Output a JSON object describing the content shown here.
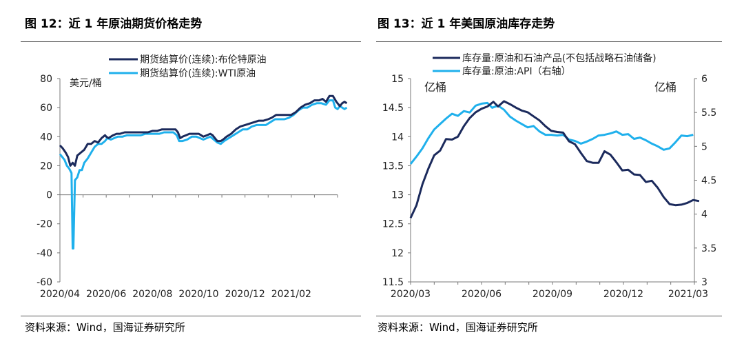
{
  "charts": [
    {
      "fig_title": "图 12：近 1 年原油期货价格走势",
      "source": "资料来源：Wind，国海证券研究所",
      "unit_label": "美元/桶",
      "colors": {
        "series1": "#1b2a5c",
        "series2": "#1fb0ec"
      }
    },
    {
      "fig_title": "图 13：近 1 年美国原油库存走势",
      "source": "资料来源：Wind，国海证券研究所",
      "unit_left": "亿桶",
      "unit_right": "亿桶",
      "colors": {
        "series1": "#1b2a5c",
        "series2": "#1fb0ec"
      }
    }
  ],
  "chart_data": [
    {
      "type": "line",
      "title": "近 1 年原油期货价格走势",
      "ylabel": "美元/桶",
      "ylim": [
        -60,
        80
      ],
      "yticks": [
        80,
        60,
        40,
        20,
        0,
        -20,
        -40,
        -60
      ],
      "x_ticks": [
        {
          "label": "2020/04",
          "x": 0
        },
        {
          "label": "2020/06",
          "x": 2
        },
        {
          "label": "2020/08",
          "x": 4
        },
        {
          "label": "2020/10",
          "x": 6
        },
        {
          "label": "2020/12",
          "x": 8
        },
        {
          "label": "2021/02",
          "x": 10
        }
      ],
      "xlim": [
        0,
        12
      ],
      "series": [
        {
          "name": "期货结算价(连续):布伦特原油",
          "points": [
            [
              0,
              34
            ],
            [
              0.12,
              32
            ],
            [
              0.25,
              29
            ],
            [
              0.35,
              26
            ],
            [
              0.45,
              20
            ],
            [
              0.55,
              22
            ],
            [
              0.65,
              20
            ],
            [
              0.75,
              27
            ],
            [
              0.9,
              29
            ],
            [
              1.05,
              31
            ],
            [
              1.2,
              35
            ],
            [
              1.35,
              35
            ],
            [
              1.5,
              37
            ],
            [
              1.65,
              36
            ],
            [
              1.8,
              39
            ],
            [
              1.95,
              41
            ],
            [
              2.0,
              40
            ],
            [
              2.1,
              39
            ],
            [
              2.3,
              41
            ],
            [
              2.45,
              42
            ],
            [
              2.6,
              42
            ],
            [
              2.8,
              43
            ],
            [
              3.0,
              43
            ],
            [
              3.2,
              43
            ],
            [
              3.4,
              43
            ],
            [
              3.6,
              43
            ],
            [
              3.8,
              43
            ],
            [
              4.0,
              44
            ],
            [
              4.2,
              44
            ],
            [
              4.4,
              45
            ],
            [
              4.6,
              45
            ],
            [
              4.8,
              45
            ],
            [
              5.0,
              45
            ],
            [
              5.1,
              43
            ],
            [
              5.2,
              39
            ],
            [
              5.3,
              40
            ],
            [
              5.45,
              41
            ],
            [
              5.6,
              42
            ],
            [
              5.8,
              42
            ],
            [
              6.0,
              42
            ],
            [
              6.1,
              41
            ],
            [
              6.2,
              40
            ],
            [
              6.35,
              41
            ],
            [
              6.5,
              42
            ],
            [
              6.6,
              41
            ],
            [
              6.7,
              39
            ],
            [
              6.8,
              37
            ],
            [
              6.95,
              37
            ],
            [
              7.05,
              38
            ],
            [
              7.2,
              40
            ],
            [
              7.4,
              42
            ],
            [
              7.6,
              45
            ],
            [
              7.8,
              47
            ],
            [
              8.0,
              48
            ],
            [
              8.2,
              49
            ],
            [
              8.4,
              50
            ],
            [
              8.6,
              51
            ],
            [
              8.8,
              51
            ],
            [
              9.0,
              52
            ],
            [
              9.15,
              53
            ],
            [
              9.35,
              55
            ],
            [
              9.6,
              55
            ],
            [
              9.8,
              55
            ],
            [
              10.0,
              55
            ],
            [
              10.2,
              57
            ],
            [
              10.4,
              60
            ],
            [
              10.6,
              62
            ],
            [
              10.8,
              63
            ],
            [
              11.0,
              65
            ],
            [
              11.2,
              65
            ],
            [
              11.35,
              66
            ],
            [
              11.5,
              64
            ],
            [
              11.65,
              68
            ],
            [
              11.8,
              68
            ],
            [
              11.95,
              64
            ],
            [
              12.0,
              63
            ],
            [
              12.1,
              61
            ],
            [
              12.2,
              63
            ],
            [
              12.3,
              64
            ],
            [
              12.4,
              63
            ]
          ]
        },
        {
          "name": "期货结算价(连续):WTI原油",
          "points": [
            [
              0,
              28
            ],
            [
              0.1,
              26
            ],
            [
              0.2,
              24
            ],
            [
              0.3,
              20
            ],
            [
              0.4,
              18
            ],
            [
              0.5,
              15
            ],
            [
              0.55,
              -37
            ],
            [
              0.58,
              -37
            ],
            [
              0.65,
              10
            ],
            [
              0.75,
              12
            ],
            [
              0.85,
              17
            ],
            [
              0.95,
              17
            ],
            [
              1.05,
              22
            ],
            [
              1.2,
              25
            ],
            [
              1.35,
              29
            ],
            [
              1.5,
              33
            ],
            [
              1.65,
              35
            ],
            [
              1.8,
              35
            ],
            [
              1.95,
              37
            ],
            [
              2.05,
              39
            ],
            [
              2.2,
              38
            ],
            [
              2.35,
              39
            ],
            [
              2.5,
              40
            ],
            [
              2.7,
              40
            ],
            [
              2.9,
              41
            ],
            [
              3.1,
              41
            ],
            [
              3.3,
              41
            ],
            [
              3.5,
              41
            ],
            [
              3.7,
              42
            ],
            [
              3.9,
              42
            ],
            [
              4.1,
              42
            ],
            [
              4.3,
              42
            ],
            [
              4.5,
              43
            ],
            [
              4.7,
              43
            ],
            [
              4.9,
              43
            ],
            [
              5.05,
              41
            ],
            [
              5.15,
              37
            ],
            [
              5.3,
              37
            ],
            [
              5.5,
              38
            ],
            [
              5.7,
              40
            ],
            [
              5.9,
              40
            ],
            [
              6.05,
              39
            ],
            [
              6.2,
              38
            ],
            [
              6.35,
              39
            ],
            [
              6.5,
              40
            ],
            [
              6.65,
              38
            ],
            [
              6.8,
              36
            ],
            [
              6.95,
              35
            ],
            [
              7.1,
              37
            ],
            [
              7.3,
              39
            ],
            [
              7.5,
              41
            ],
            [
              7.7,
              43
            ],
            [
              7.9,
              45
            ],
            [
              8.1,
              45
            ],
            [
              8.3,
              47
            ],
            [
              8.5,
              48
            ],
            [
              8.7,
              48
            ],
            [
              8.9,
              48
            ],
            [
              9.1,
              50
            ],
            [
              9.3,
              52
            ],
            [
              9.5,
              52
            ],
            [
              9.7,
              52
            ],
            [
              9.9,
              53
            ],
            [
              10.1,
              55
            ],
            [
              10.3,
              58
            ],
            [
              10.5,
              60
            ],
            [
              10.7,
              60
            ],
            [
              10.9,
              62
            ],
            [
              11.1,
              63
            ],
            [
              11.3,
              63
            ],
            [
              11.5,
              62
            ],
            [
              11.65,
              65
            ],
            [
              11.8,
              65
            ],
            [
              11.9,
              60
            ],
            [
              12.0,
              59
            ],
            [
              12.1,
              61
            ],
            [
              12.2,
              60
            ],
            [
              12.3,
              59
            ],
            [
              12.4,
              60
            ]
          ]
        }
      ]
    },
    {
      "type": "line",
      "title": "近 1 年美国原油库存走势",
      "ylabel_left": "亿桶",
      "ylabel_right": "亿桶",
      "ylim_left": [
        11.5,
        15
      ],
      "ylim_right": [
        3,
        6
      ],
      "yticks_left": [
        15,
        14.5,
        14,
        13.5,
        13,
        12.5,
        12,
        11.5
      ],
      "yticks_right": [
        6,
        5.5,
        5,
        4.5,
        4,
        3.5,
        3
      ],
      "x_ticks": [
        {
          "label": "2020/03",
          "x": 0
        },
        {
          "label": "2020/06",
          "x": 3
        },
        {
          "label": "2020/09",
          "x": 6
        },
        {
          "label": "2020/12",
          "x": 9
        },
        {
          "label": "2021/03",
          "x": 12
        }
      ],
      "xlim": [
        0,
        12
      ],
      "series": [
        {
          "name": "库存量:原油和石油产品(不包括战略石油储备)",
          "axis": "left",
          "points": [
            [
              0,
              12.6
            ],
            [
              0.25,
              12.82
            ],
            [
              0.5,
              13.18
            ],
            [
              0.75,
              13.45
            ],
            [
              1.0,
              13.68
            ],
            [
              1.25,
              13.76
            ],
            [
              1.5,
              13.96
            ],
            [
              1.75,
              13.95
            ],
            [
              2.0,
              14.0
            ],
            [
              2.25,
              14.18
            ],
            [
              2.5,
              14.32
            ],
            [
              2.75,
              14.42
            ],
            [
              3.0,
              14.48
            ],
            [
              3.25,
              14.52
            ],
            [
              3.5,
              14.6
            ],
            [
              3.7,
              14.52
            ],
            [
              3.95,
              14.61
            ],
            [
              4.2,
              14.56
            ],
            [
              4.45,
              14.5
            ],
            [
              4.7,
              14.45
            ],
            [
              4.95,
              14.42
            ],
            [
              5.2,
              14.35
            ],
            [
              5.45,
              14.28
            ],
            [
              5.7,
              14.18
            ],
            [
              5.95,
              14.1
            ],
            [
              6.2,
              14.08
            ],
            [
              6.45,
              14.07
            ],
            [
              6.7,
              13.92
            ],
            [
              6.95,
              13.87
            ],
            [
              7.2,
              13.72
            ],
            [
              7.45,
              13.58
            ],
            [
              7.7,
              13.55
            ],
            [
              7.95,
              13.55
            ],
            [
              8.2,
              13.75
            ],
            [
              8.45,
              13.69
            ],
            [
              8.7,
              13.56
            ],
            [
              8.95,
              13.42
            ],
            [
              9.2,
              13.43
            ],
            [
              9.45,
              13.35
            ],
            [
              9.7,
              13.34
            ],
            [
              9.95,
              13.22
            ],
            [
              10.2,
              13.24
            ],
            [
              10.45,
              13.12
            ],
            [
              10.7,
              12.96
            ],
            [
              10.95,
              12.84
            ],
            [
              11.2,
              12.82
            ],
            [
              11.45,
              12.83
            ],
            [
              11.7,
              12.86
            ],
            [
              11.95,
              12.91
            ],
            [
              12.2,
              12.89
            ]
          ]
        },
        {
          "name": "库存量:原油:API（右轴）",
          "axis": "right",
          "points": [
            [
              0,
              4.74
            ],
            [
              0.25,
              4.85
            ],
            [
              0.5,
              4.97
            ],
            [
              0.75,
              5.12
            ],
            [
              1.0,
              5.25
            ],
            [
              1.25,
              5.33
            ],
            [
              1.5,
              5.41
            ],
            [
              1.75,
              5.48
            ],
            [
              2.0,
              5.45
            ],
            [
              2.25,
              5.52
            ],
            [
              2.5,
              5.5
            ],
            [
              2.75,
              5.6
            ],
            [
              3.0,
              5.63
            ],
            [
              3.25,
              5.64
            ],
            [
              3.45,
              5.57
            ],
            [
              3.7,
              5.6
            ],
            [
              3.95,
              5.54
            ],
            [
              4.2,
              5.44
            ],
            [
              4.45,
              5.38
            ],
            [
              4.7,
              5.33
            ],
            [
              4.95,
              5.28
            ],
            [
              5.2,
              5.3
            ],
            [
              5.45,
              5.22
            ],
            [
              5.7,
              5.17
            ],
            [
              5.95,
              5.17
            ],
            [
              6.2,
              5.16
            ],
            [
              6.45,
              5.17
            ],
            [
              6.7,
              5.1
            ],
            [
              6.95,
              5.08
            ],
            [
              7.2,
              5.04
            ],
            [
              7.45,
              5.07
            ],
            [
              7.7,
              5.11
            ],
            [
              7.95,
              5.16
            ],
            [
              8.2,
              5.17
            ],
            [
              8.45,
              5.19
            ],
            [
              8.7,
              5.22
            ],
            [
              8.95,
              5.17
            ],
            [
              9.2,
              5.18
            ],
            [
              9.45,
              5.11
            ],
            [
              9.7,
              5.13
            ],
            [
              9.95,
              5.09
            ],
            [
              10.2,
              5.04
            ],
            [
              10.45,
              5.0
            ],
            [
              10.7,
              4.95
            ],
            [
              10.95,
              4.97
            ],
            [
              11.2,
              5.06
            ],
            [
              11.45,
              5.16
            ],
            [
              11.7,
              5.15
            ],
            [
              11.95,
              5.17
            ]
          ]
        }
      ]
    }
  ]
}
